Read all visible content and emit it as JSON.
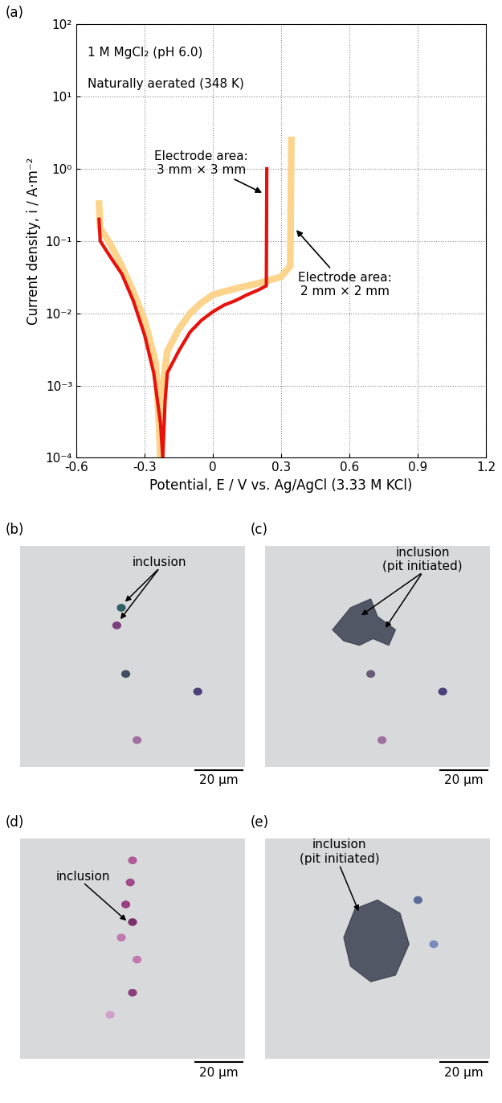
{
  "chart_data": {
    "type": "line",
    "panel_label": "(a)",
    "log": "y",
    "grid": true,
    "x_label": "Potential, E / V vs. Ag/AgCl (3.33 M KCl)",
    "y_label": "Current density, i / A·m⁻²",
    "xlim": [
      -0.6,
      1.2
    ],
    "xticks": [
      -0.6,
      -0.3,
      0,
      0.3,
      0.6,
      0.9,
      1.2
    ],
    "ylim": [
      0.0001,
      100
    ],
    "yticks": [
      {
        "value": 0.0001,
        "label": "10⁻⁴"
      },
      {
        "value": 0.001,
        "label": "10⁻³"
      },
      {
        "value": 0.01,
        "label": "10⁻²"
      },
      {
        "value": 0.1,
        "label": "10⁻¹"
      },
      {
        "value": 1,
        "label": "10⁰"
      },
      {
        "value": 10,
        "label": "10¹"
      },
      {
        "value": 100,
        "label": "10²"
      }
    ],
    "annotations": [
      "1 M MgCl₂ (pH 6.0)",
      "Naturally aerated (348 K)",
      "Electrode area:\n3 mm × 3 mm",
      "Electrode area:\n2 mm × 2 mm"
    ],
    "series": [
      {
        "color": "#fcd48c",
        "x": [
          -0.5,
          -0.495,
          -0.45,
          -0.4,
          -0.35,
          -0.3,
          -0.25,
          -0.23,
          -0.22,
          -0.2,
          -0.15,
          -0.1,
          -0.05,
          0,
          0.05,
          0.1,
          0.2,
          0.3,
          0.34,
          0.345
        ],
        "values": [
          0.33,
          0.15,
          0.09,
          0.045,
          0.02,
          0.008,
          0.002,
          0.0001,
          0.001,
          0.003,
          0.006,
          0.01,
          0.014,
          0.018,
          0.02,
          0.022,
          0.026,
          0.032,
          0.045,
          2.5
        ]
      },
      {
        "color": "#e8120c",
        "x": [
          -0.5,
          -0.495,
          -0.45,
          -0.4,
          -0.35,
          -0.3,
          -0.26,
          -0.23,
          -0.22,
          -0.21,
          -0.2,
          -0.15,
          -0.1,
          -0.05,
          0,
          0.05,
          0.1,
          0.15,
          0.2,
          0.235,
          0.237
        ],
        "values": [
          0.2,
          0.1,
          0.06,
          0.035,
          0.015,
          0.005,
          0.0015,
          0.0003,
          0.0001,
          0.0006,
          0.0015,
          0.003,
          0.0055,
          0.008,
          0.0105,
          0.013,
          0.015,
          0.018,
          0.021,
          0.024,
          1.0
        ]
      }
    ]
  },
  "micrographs": [
    {
      "label": "(b)",
      "annotation": "inclusion",
      "scale_bar": "20 µm"
    },
    {
      "label": "(c)",
      "annotation": "inclusion\n(pit initiated)",
      "scale_bar": "20 µm"
    },
    {
      "label": "(d)",
      "annotation": "inclusion",
      "scale_bar": "20 µm"
    },
    {
      "label": "(e)",
      "annotation": "inclusion\n(pit initiated)",
      "scale_bar": "20 µm"
    }
  ]
}
